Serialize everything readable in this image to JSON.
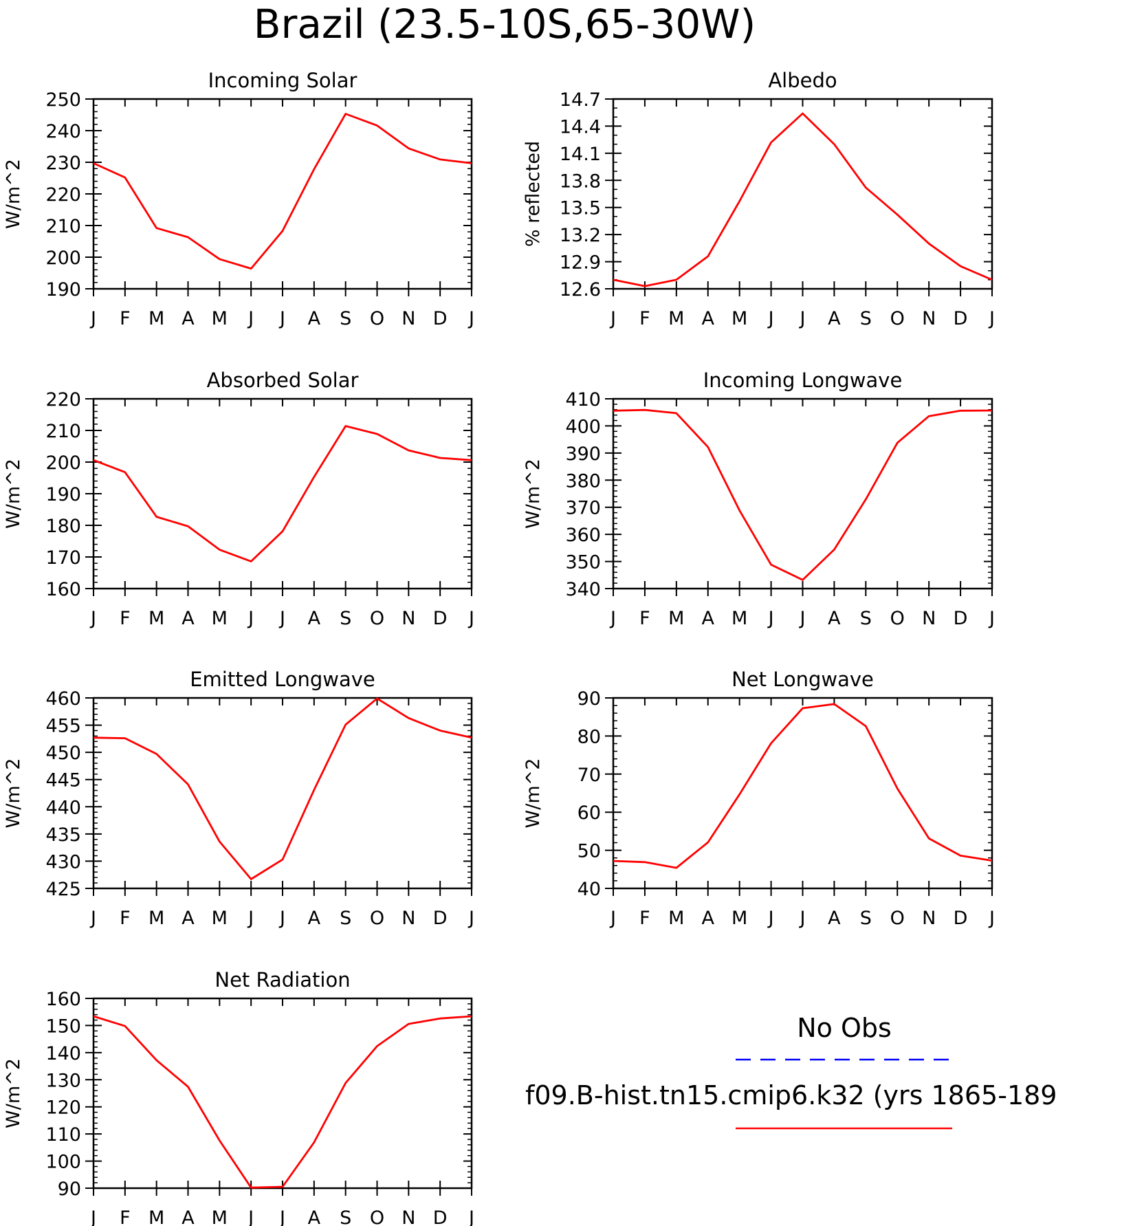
{
  "figure": {
    "title": "Brazil (23.5-10S,65-30W)"
  },
  "colors": {
    "model_line": "#ff0000",
    "obs_line": "#0000ff",
    "axes": "#000000",
    "background": "#ffffff"
  },
  "legend": {
    "obs_label": "No Obs",
    "model_label": "f09.B-hist.tn15.cmip6.k32 (yrs 1865-189"
  },
  "chart_data": [
    {
      "type": "line",
      "title": "Incoming Solar",
      "xlabel": "",
      "ylabel": "W/m^2",
      "x_tick_labels": [
        "J",
        "F",
        "M",
        "A",
        "M",
        "J",
        "J",
        "A",
        "S",
        "O",
        "N",
        "D",
        "J"
      ],
      "ylim": [
        190,
        250
      ],
      "y_ticks": [
        190,
        200,
        210,
        220,
        230,
        240,
        250
      ],
      "y_tick_labels": [
        "190",
        "200",
        "210",
        "220",
        "230",
        "240",
        "250"
      ],
      "y_minor_step": 2,
      "series": [
        {
          "values": [
            229.7,
            225.2,
            209.2,
            206.3,
            199.4,
            196.4,
            208.3,
            227.8,
            245.3,
            241.6,
            234.4,
            230.9,
            229.7
          ]
        }
      ]
    },
    {
      "type": "line",
      "title": "Albedo",
      "xlabel": "",
      "ylabel": "% reflected",
      "x_tick_labels": [
        "J",
        "F",
        "M",
        "A",
        "M",
        "J",
        "J",
        "A",
        "S",
        "O",
        "N",
        "D",
        "J"
      ],
      "ylim": [
        12.6,
        14.7
      ],
      "y_ticks": [
        12.6,
        12.9,
        13.2,
        13.5,
        13.8,
        14.1,
        14.4,
        14.7
      ],
      "y_tick_labels": [
        "12.6",
        "12.9",
        "13.2",
        "13.5",
        "13.8",
        "14.1",
        "14.4",
        "14.7"
      ],
      "y_minor_step": 0.1,
      "series": [
        {
          "values": [
            12.7,
            12.63,
            12.7,
            12.96,
            13.57,
            14.22,
            14.54,
            14.2,
            13.72,
            13.42,
            13.1,
            12.85,
            12.7
          ]
        }
      ]
    },
    {
      "type": "line",
      "title": "Absorbed Solar",
      "xlabel": "",
      "ylabel": "W/m^2",
      "x_tick_labels": [
        "J",
        "F",
        "M",
        "A",
        "M",
        "J",
        "J",
        "A",
        "S",
        "O",
        "N",
        "D",
        "J"
      ],
      "ylim": [
        160,
        220
      ],
      "y_ticks": [
        160,
        170,
        180,
        190,
        200,
        210,
        220
      ],
      "y_tick_labels": [
        "160",
        "170",
        "180",
        "190",
        "200",
        "210",
        "220"
      ],
      "y_minor_step": 2,
      "series": [
        {
          "values": [
            200.6,
            196.8,
            182.7,
            179.7,
            172.3,
            168.6,
            178.1,
            195.3,
            211.4,
            208.9,
            203.7,
            201.3,
            200.6
          ]
        }
      ]
    },
    {
      "type": "line",
      "title": "Incoming Longwave",
      "xlabel": "",
      "ylabel": "W/m^2",
      "x_tick_labels": [
        "J",
        "F",
        "M",
        "A",
        "M",
        "J",
        "J",
        "A",
        "S",
        "O",
        "N",
        "D",
        "J"
      ],
      "ylim": [
        340,
        410
      ],
      "y_ticks": [
        340,
        350,
        360,
        370,
        380,
        390,
        400,
        410
      ],
      "y_tick_labels": [
        "340",
        "350",
        "360",
        "370",
        "380",
        "390",
        "400",
        "410"
      ],
      "y_minor_step": 2,
      "series": [
        {
          "values": [
            405.6,
            405.9,
            404.7,
            392.2,
            368.8,
            348.8,
            343.2,
            354.4,
            372.9,
            393.8,
            403.6,
            405.6,
            405.7
          ]
        }
      ]
    },
    {
      "type": "line",
      "title": "Emitted Longwave",
      "xlabel": "",
      "ylabel": "W/m^2",
      "x_tick_labels": [
        "J",
        "F",
        "M",
        "A",
        "M",
        "J",
        "J",
        "A",
        "S",
        "O",
        "N",
        "D",
        "J"
      ],
      "ylim": [
        425,
        460
      ],
      "y_ticks": [
        425,
        430,
        435,
        440,
        445,
        450,
        455,
        460
      ],
      "y_tick_labels": [
        "425",
        "430",
        "435",
        "440",
        "445",
        "450",
        "455",
        "460"
      ],
      "y_minor_step": 1,
      "series": [
        {
          "values": [
            452.7,
            452.6,
            449.7,
            444.1,
            433.6,
            426.7,
            430.3,
            443.1,
            455.1,
            459.9,
            456.3,
            454.0,
            452.7
          ]
        }
      ]
    },
    {
      "type": "line",
      "title": "Net Longwave",
      "xlabel": "",
      "ylabel": "W/m^2",
      "x_tick_labels": [
        "J",
        "F",
        "M",
        "A",
        "M",
        "J",
        "J",
        "A",
        "S",
        "O",
        "N",
        "D",
        "J"
      ],
      "ylim": [
        40,
        90
      ],
      "y_ticks": [
        40,
        50,
        60,
        70,
        80,
        90
      ],
      "y_tick_labels": [
        "40",
        "50",
        "60",
        "70",
        "80",
        "90"
      ],
      "y_minor_step": 2,
      "series": [
        {
          "values": [
            47.2,
            46.9,
            45.4,
            52.1,
            64.7,
            78.1,
            87.3,
            88.4,
            82.6,
            66.2,
            53.1,
            48.6,
            47.3
          ]
        }
      ]
    },
    {
      "type": "line",
      "title": "Net Radiation",
      "xlabel": "",
      "ylabel": "W/m^2",
      "x_tick_labels": [
        "J",
        "F",
        "M",
        "A",
        "M",
        "J",
        "J",
        "A",
        "S",
        "O",
        "N",
        "D",
        "J"
      ],
      "ylim": [
        90,
        160
      ],
      "y_ticks": [
        90,
        100,
        110,
        120,
        130,
        140,
        150,
        160
      ],
      "y_tick_labels": [
        "90",
        "100",
        "110",
        "120",
        "130",
        "140",
        "150",
        "160"
      ],
      "y_minor_step": 2,
      "series": [
        {
          "values": [
            153.4,
            149.8,
            137.2,
            127.4,
            107.6,
            90.2,
            90.5,
            106.9,
            128.8,
            142.4,
            150.6,
            152.6,
            153.4
          ]
        }
      ]
    }
  ]
}
